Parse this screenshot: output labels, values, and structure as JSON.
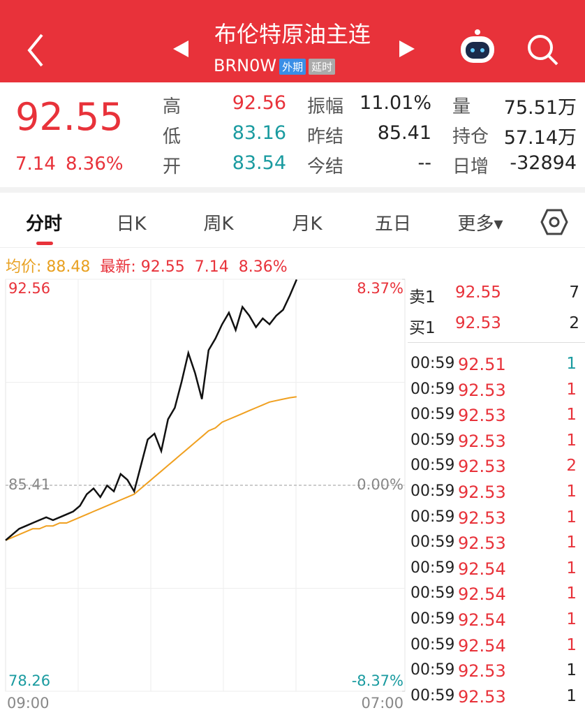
{
  "header": {
    "title": "布伦特原油主连",
    "code": "BRN0W",
    "badges": [
      "外期",
      "延时"
    ]
  },
  "quote": {
    "price": "92.55",
    "change": "7.14",
    "change_pct": "8.36%",
    "stats": [
      [
        {
          "label": "高",
          "value": "92.56",
          "color": "#e8323a"
        },
        {
          "label": "振幅",
          "value": "11.01%",
          "color": "#222"
        },
        {
          "label": "量",
          "value": "75.51万",
          "color": "#222"
        }
      ],
      [
        {
          "label": "低",
          "value": "83.16",
          "color": "#1a9ba0"
        },
        {
          "label": "昨结",
          "value": "85.41",
          "color": "#222"
        },
        {
          "label": "持仓",
          "value": "57.14万",
          "color": "#222"
        }
      ],
      [
        {
          "label": "开",
          "value": "83.54",
          "color": "#1a9ba0"
        },
        {
          "label": "今结",
          "value": "--",
          "color": "#222"
        },
        {
          "label": "日增",
          "value": "-32894",
          "color": "#222"
        }
      ]
    ]
  },
  "tabs": [
    "分时",
    "日K",
    "周K",
    "月K",
    "五日",
    "更多▾"
  ],
  "info": {
    "avg_label": "均价: 88.48",
    "latest_label": "最新: 92.55",
    "change": "7.14",
    "change_pct": "8.36%"
  },
  "chart_data": {
    "type": "line",
    "ylim": [
      78.26,
      92.56
    ],
    "yticks": [
      78.26,
      85.41,
      92.56
    ],
    "y2lim": [
      -8.37,
      8.37
    ],
    "y2ticks": [
      {
        "value": 8.37,
        "label": "8.37%"
      },
      {
        "value": 0,
        "label": "0.00%"
      },
      {
        "value": -8.37,
        "label": "-8.37%"
      }
    ],
    "x_labels": [
      "09:00",
      "07:00"
    ],
    "series": [
      {
        "name": "最新",
        "color": "#111111",
        "values": [
          83.5,
          83.7,
          83.9,
          84.0,
          84.1,
          84.2,
          84.3,
          84.2,
          84.3,
          84.4,
          84.5,
          84.7,
          85.1,
          85.3,
          85.0,
          85.4,
          85.2,
          85.8,
          85.6,
          85.2,
          86.1,
          87.0,
          87.2,
          86.6,
          87.7,
          88.1,
          89.0,
          90.0,
          89.3,
          88.4,
          90.1,
          90.5,
          91.0,
          91.4,
          90.8,
          91.6,
          91.3,
          90.9,
          91.2,
          91.0,
          91.3,
          91.5,
          92.0,
          92.55,
          null,
          null,
          null,
          null,
          null,
          null,
          null,
          null,
          null,
          null,
          null,
          null,
          null,
          null,
          null,
          null
        ]
      },
      {
        "name": "均价",
        "color": "#f0a020",
        "values": [
          83.5,
          83.6,
          83.7,
          83.8,
          83.9,
          83.9,
          84.0,
          84.0,
          84.1,
          84.1,
          84.2,
          84.3,
          84.4,
          84.5,
          84.6,
          84.7,
          84.8,
          84.9,
          85.0,
          85.1,
          85.3,
          85.5,
          85.7,
          85.9,
          86.1,
          86.3,
          86.5,
          86.7,
          86.9,
          87.1,
          87.3,
          87.4,
          87.6,
          87.7,
          87.8,
          87.9,
          88.0,
          88.1,
          88.2,
          88.3,
          88.35,
          88.4,
          88.45,
          88.48,
          null,
          null,
          null,
          null,
          null,
          null,
          null,
          null,
          null,
          null,
          null,
          null,
          null,
          null,
          null,
          null
        ]
      }
    ]
  },
  "book": [
    {
      "side": "卖1",
      "price": "92.55",
      "volume": "7"
    },
    {
      "side": "买1",
      "price": "92.53",
      "volume": "2"
    }
  ],
  "trades": [
    {
      "time": "00:59",
      "price": "92.51",
      "volume": "1",
      "color": "#1a9ba0"
    },
    {
      "time": "00:59",
      "price": "92.53",
      "volume": "1",
      "color": "#e8323a"
    },
    {
      "time": "00:59",
      "price": "92.53",
      "volume": "1",
      "color": "#e8323a"
    },
    {
      "time": "00:59",
      "price": "92.53",
      "volume": "1",
      "color": "#e8323a"
    },
    {
      "time": "00:59",
      "price": "92.53",
      "volume": "2",
      "color": "#e8323a"
    },
    {
      "time": "00:59",
      "price": "92.53",
      "volume": "1",
      "color": "#e8323a"
    },
    {
      "time": "00:59",
      "price": "92.53",
      "volume": "1",
      "color": "#e8323a"
    },
    {
      "time": "00:59",
      "price": "92.53",
      "volume": "1",
      "color": "#e8323a"
    },
    {
      "time": "00:59",
      "price": "92.54",
      "volume": "1",
      "color": "#e8323a"
    },
    {
      "time": "00:59",
      "price": "92.54",
      "volume": "1",
      "color": "#e8323a"
    },
    {
      "time": "00:59",
      "price": "92.54",
      "volume": "1",
      "color": "#e8323a"
    },
    {
      "time": "00:59",
      "price": "92.54",
      "volume": "1",
      "color": "#e8323a"
    },
    {
      "time": "00:59",
      "price": "92.53",
      "volume": "1",
      "color": "#222222"
    },
    {
      "time": "00:59",
      "price": "92.53",
      "volume": "1",
      "color": "#222222"
    }
  ]
}
